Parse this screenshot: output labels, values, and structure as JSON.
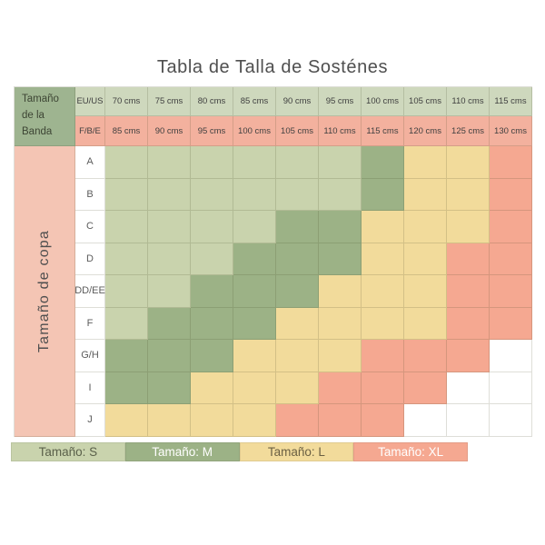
{
  "title": "Tabla de Talla de Sosténes",
  "colors": {
    "S": "#c9d3ad",
    "M": "#9cb286",
    "L": "#f2db9b",
    "XL": "#f5a891",
    "empty": "#ffffff",
    "header_row1_bg": "#ced8bd",
    "header_row2_bg": "#f3b19e",
    "corner_bg": "#9eb490",
    "cup_strip_bg": "#f4c5b4"
  },
  "chart_data": {
    "type": "heatmap",
    "band_axis_label": "Tamaño\nde la Banda",
    "cup_axis_label": "Tamaño de copa",
    "band_row1_name": "EU/US",
    "band_row2_name": "F/B/E",
    "band_row1": [
      "70 cms",
      "75 cms",
      "80 cms",
      "85 cms",
      "90 cms",
      "95 cms",
      "100 cms",
      "105 cms",
      "110 cms",
      "115 cms"
    ],
    "band_row2": [
      "85 cms",
      "90 cms",
      "95 cms",
      "100 cms",
      "105 cms",
      "110 cms",
      "115 cms",
      "120 cms",
      "125 cms",
      "130 cms"
    ],
    "cup_sizes": [
      "A",
      "B",
      "C",
      "D",
      "DD/EE",
      "F",
      "G/H",
      "I",
      "J"
    ],
    "matrix": [
      [
        "S",
        "S",
        "S",
        "S",
        "S",
        "S",
        "M",
        "L",
        "L",
        "XL"
      ],
      [
        "S",
        "S",
        "S",
        "S",
        "S",
        "S",
        "M",
        "L",
        "L",
        "XL"
      ],
      [
        "S",
        "S",
        "S",
        "S",
        "M",
        "M",
        "L",
        "L",
        "L",
        "XL"
      ],
      [
        "S",
        "S",
        "S",
        "M",
        "M",
        "M",
        "L",
        "L",
        "XL",
        "XL"
      ],
      [
        "S",
        "S",
        "M",
        "M",
        "M",
        "L",
        "L",
        "L",
        "XL",
        "XL"
      ],
      [
        "S",
        "M",
        "M",
        "M",
        "L",
        "L",
        "L",
        "L",
        "XL",
        "XL"
      ],
      [
        "M",
        "M",
        "M",
        "L",
        "L",
        "L",
        "XL",
        "XL",
        "XL",
        ""
      ],
      [
        "M",
        "M",
        "L",
        "L",
        "L",
        "XL",
        "XL",
        "XL",
        "",
        ""
      ],
      [
        "L",
        "L",
        "L",
        "L",
        "XL",
        "XL",
        "XL",
        "",
        "",
        ""
      ]
    ]
  },
  "legend": {
    "items": [
      {
        "label": "Tamaño: S",
        "size": "S",
        "text_color": "#5a604a"
      },
      {
        "label": "Tamaño: M",
        "size": "M",
        "text_color": "#ffffff"
      },
      {
        "label": "Tamaño: L",
        "size": "L",
        "text_color": "#6a5f42"
      },
      {
        "label": "Tamaño: XL",
        "size": "XL",
        "text_color": "#ffffff"
      }
    ]
  }
}
